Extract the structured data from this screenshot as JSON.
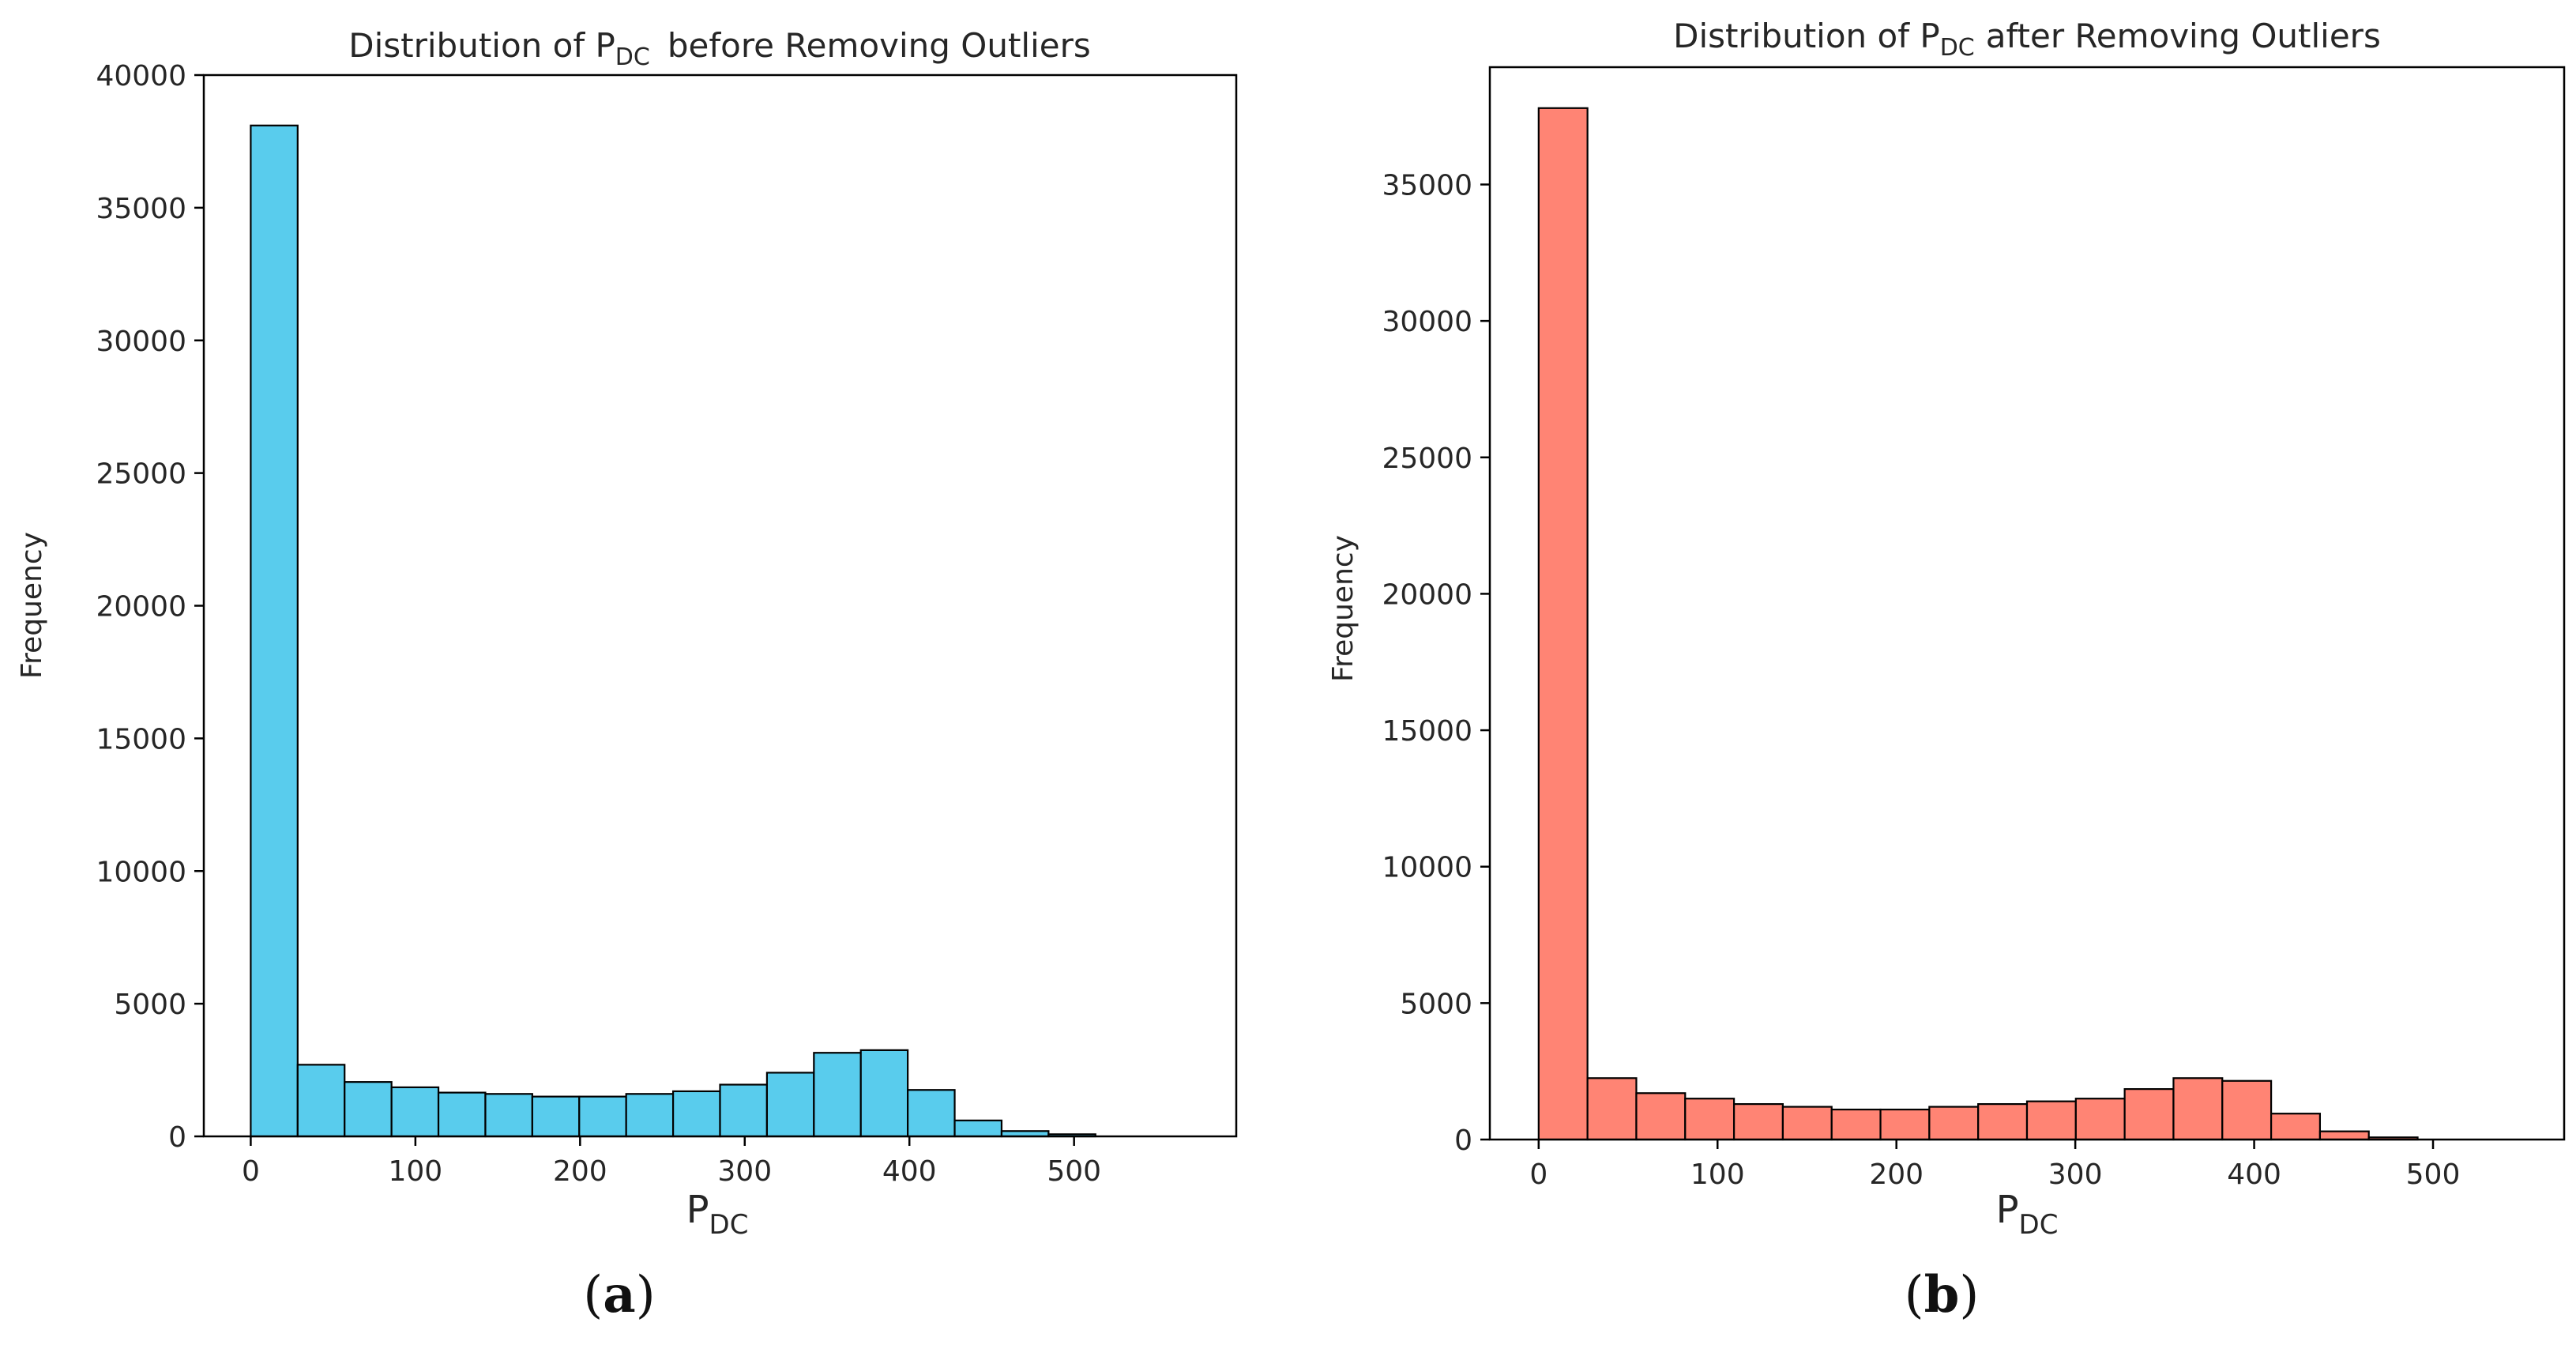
{
  "colors": {
    "panel_a_fill": "#59CCED",
    "panel_b_fill": "#FF8474",
    "edge": "#000000",
    "text": "#262626"
  },
  "chart_data": [
    {
      "type": "bar",
      "panel": "a",
      "title_prefix": "Distribution of P",
      "title_sub": "DC",
      "title_suffix": "before Removing Outliers",
      "xlabel_main": "P",
      "xlabel_sub": "DC",
      "ylabel": "Frequency",
      "caption_open": "(",
      "caption_letter": "a",
      "caption_close": ")",
      "bin_width": 28.5,
      "x_start": 0,
      "values": [
        38100,
        2700,
        2050,
        1850,
        1650,
        1600,
        1500,
        1500,
        1600,
        1700,
        1950,
        2400,
        3150,
        3250,
        1750,
        600,
        200,
        80
      ],
      "xlim": [
        -28.5,
        598.5
      ],
      "ylim": [
        0,
        40000
      ],
      "xticks": [
        0,
        100,
        200,
        300,
        400,
        500
      ],
      "yticks": [
        0,
        5000,
        10000,
        15000,
        20000,
        25000,
        30000,
        35000,
        40000
      ],
      "xtick_labels": [
        "0",
        "100",
        "200",
        "300",
        "400",
        "500"
      ],
      "ytick_labels": [
        "0",
        "5000",
        "10000",
        "15000",
        "20000",
        "25000",
        "30000",
        "35000",
        "40000"
      ]
    },
    {
      "type": "bar",
      "panel": "b",
      "title_prefix": "Distribution of P",
      "title_sub": "DC",
      "title_suffix": "after Removing Outliers",
      "xlabel_main": "P",
      "xlabel_sub": "DC",
      "ylabel": "Frequency",
      "caption_open": "(",
      "caption_letter": "b",
      "caption_close": ")",
      "bin_width": 27.3,
      "x_start": 0,
      "values": [
        37800,
        2250,
        1700,
        1500,
        1300,
        1200,
        1100,
        1100,
        1200,
        1300,
        1400,
        1500,
        1850,
        2250,
        2150,
        950,
        300,
        80
      ],
      "xlim": [
        -27.3,
        573.3
      ],
      "ylim": [
        0,
        39300
      ],
      "xticks": [
        0,
        100,
        200,
        300,
        400,
        500
      ],
      "yticks": [
        0,
        5000,
        10000,
        15000,
        20000,
        25000,
        30000,
        35000
      ],
      "xtick_labels": [
        "0",
        "100",
        "200",
        "300",
        "400",
        "500"
      ],
      "ytick_labels": [
        "0",
        "5000",
        "10000",
        "15000",
        "20000",
        "25000",
        "30000",
        "35000"
      ]
    }
  ]
}
